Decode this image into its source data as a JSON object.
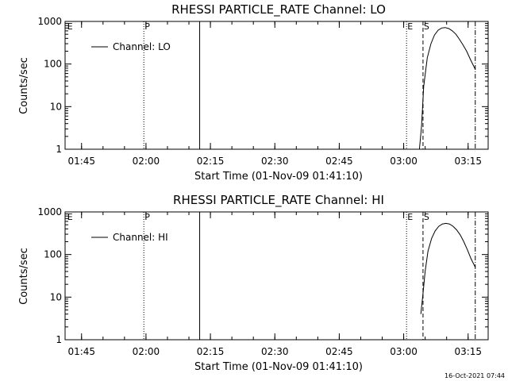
{
  "timestamp": "16-Oct-2021 07:44",
  "chart_data": [
    {
      "type": "line",
      "title": "RHESSI PARTICLE_RATE Channel: LO",
      "xlabel": "Start Time (01-Nov-09 01:41:10)",
      "ylabel": "Counts/sec",
      "yscale": "log",
      "ylim": [
        1,
        1000
      ],
      "y_ticks": [
        "1",
        "10",
        "100",
        "1000"
      ],
      "x_ticks": [
        "01:45",
        "02:00",
        "02:15",
        "02:30",
        "02:45",
        "03:00",
        "03:15"
      ],
      "xlim": [
        "01:41:10",
        "03:19:40"
      ],
      "legend": {
        "placement": "top-left",
        "entries": [
          "Channel: LO"
        ]
      },
      "markers": [
        {
          "label": "E",
          "time": "01:41:30",
          "style": "left-edge"
        },
        {
          "label": "P",
          "time": "01:59:30",
          "style": "dotted"
        },
        {
          "label": "",
          "time": "02:12:30",
          "style": "solid"
        },
        {
          "label": "E",
          "time": "03:00:40",
          "style": "dotted"
        },
        {
          "label": "S",
          "time": "03:04:30",
          "style": "dashed"
        },
        {
          "label": "",
          "time": "03:16:40",
          "style": "dash-dot"
        }
      ],
      "series": [
        {
          "name": "Channel: LO",
          "x": [
            "03:03:40",
            "03:04:10",
            "03:04:40",
            "03:05:30",
            "03:06:20",
            "03:07:10",
            "03:08:00",
            "03:08:50",
            "03:09:40",
            "03:10:30",
            "03:11:20",
            "03:12:10",
            "03:13:00",
            "03:13:50",
            "03:14:40",
            "03:15:30",
            "03:16:40"
          ],
          "y": [
            1.0,
            3.5,
            30,
            140,
            300,
            480,
            620,
            700,
            720,
            680,
            600,
            500,
            380,
            280,
            200,
            130,
            75
          ]
        }
      ]
    },
    {
      "type": "line",
      "title": "RHESSI PARTICLE_RATE Channel: HI",
      "xlabel": "Start Time (01-Nov-09 01:41:10)",
      "ylabel": "Counts/sec",
      "yscale": "log",
      "ylim": [
        1,
        1000
      ],
      "y_ticks": [
        "1",
        "10",
        "100",
        "1000"
      ],
      "x_ticks": [
        "01:45",
        "02:00",
        "02:15",
        "02:30",
        "02:45",
        "03:00",
        "03:15"
      ],
      "xlim": [
        "01:41:10",
        "03:19:40"
      ],
      "legend": {
        "placement": "top-left",
        "entries": [
          "Channel: HI"
        ]
      },
      "markers": [
        {
          "label": "E",
          "time": "01:41:30",
          "style": "left-edge"
        },
        {
          "label": "P",
          "time": "01:59:30",
          "style": "dotted"
        },
        {
          "label": "",
          "time": "02:12:30",
          "style": "solid"
        },
        {
          "label": "E",
          "time": "03:00:40",
          "style": "dotted"
        },
        {
          "label": "S",
          "time": "03:04:30",
          "style": "dashed"
        },
        {
          "label": "",
          "time": "03:16:40",
          "style": "dash-dot"
        }
      ],
      "series": [
        {
          "name": "Channel: HI",
          "x": [
            "03:04:00",
            "03:04:30",
            "03:05:00",
            "03:05:40",
            "03:06:30",
            "03:07:20",
            "03:08:10",
            "03:09:00",
            "03:09:50",
            "03:10:40",
            "03:11:30",
            "03:12:20",
            "03:13:10",
            "03:14:00",
            "03:14:50",
            "03:15:40",
            "03:16:40"
          ],
          "y": [
            4,
            12,
            40,
            120,
            240,
            360,
            460,
            520,
            540,
            520,
            460,
            380,
            290,
            200,
            130,
            80,
            50
          ]
        }
      ]
    }
  ]
}
